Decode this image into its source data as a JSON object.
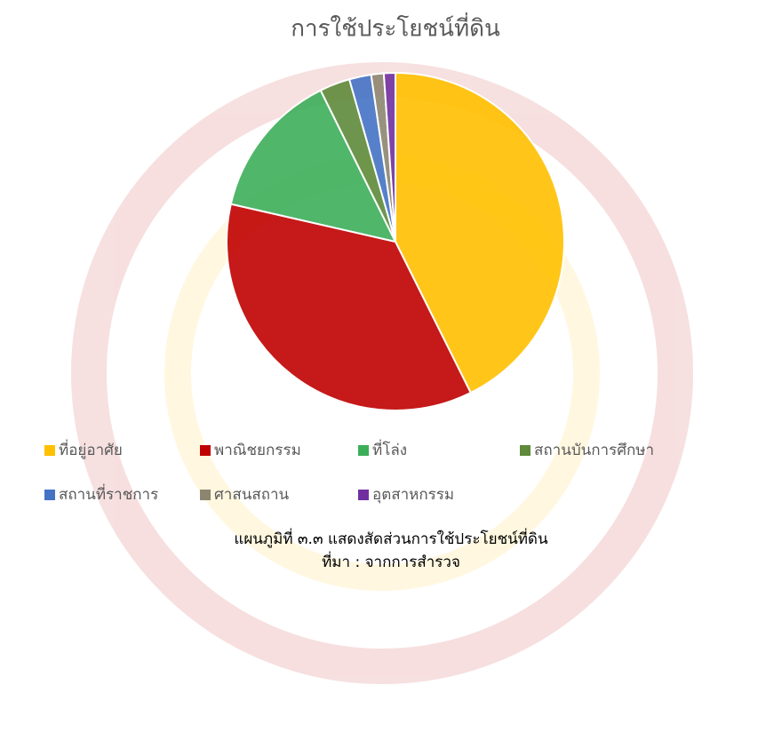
{
  "chart_data": {
    "type": "pie",
    "title": "การใช้ประโยชน์ที่ดิน",
    "categories": [
      "ที่อยู่อาศัย",
      "พาณิชยกรรม",
      "ที่โล่ง",
      "สถานบันการศึกษา",
      "สถานที่ราชการ",
      "ศาสนสถาน",
      "อุตสาหกรรม"
    ],
    "values": [
      42.6,
      35.9,
      14.1,
      2.9,
      2.1,
      1.2,
      1.1
    ],
    "colors": [
      "#ffc000",
      "#c00000",
      "#3cae5a",
      "#5e8a3a",
      "#4472c4",
      "#8c8670",
      "#7030a0"
    ],
    "legend": "bottom",
    "caption": [
      "แผนภูมิที่ ๓.๓ แสดงสัดส่วนการใช้ประโยชน์ที่ดิน",
      "ที่มา : จากการสำรวจ"
    ]
  }
}
